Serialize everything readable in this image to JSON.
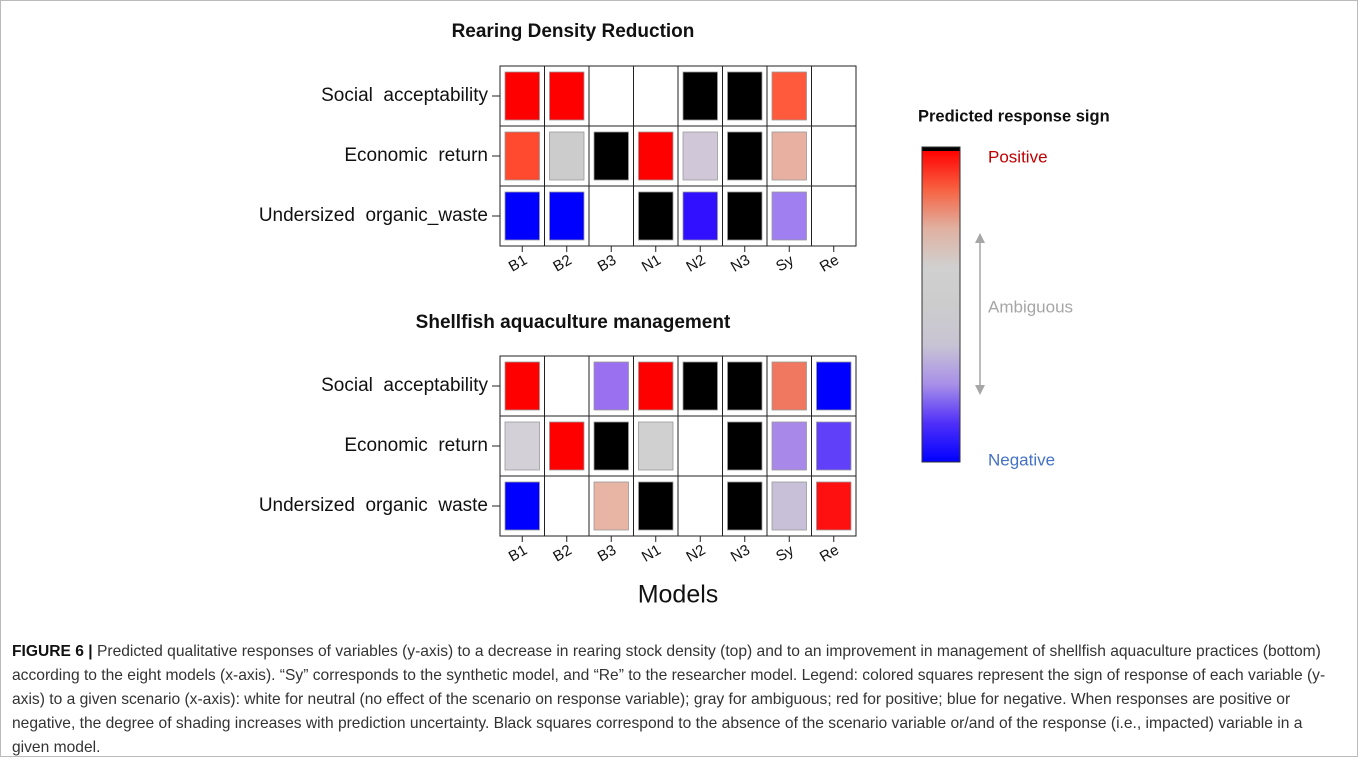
{
  "panels": [
    {
      "title": "Rearing Density Reduction",
      "rows": [
        "Social  acceptability",
        "Economic  return",
        "Undersized  organic_waste"
      ],
      "columns": [
        "B1",
        "B2",
        "B3",
        "N1",
        "N2",
        "N3",
        "Sy",
        "Re"
      ],
      "cells": [
        [
          "#ff0000",
          "#ff0000",
          "#ffffff",
          "#ffffff",
          "#000000",
          "#000000",
          "#ff5a3c",
          "#ffffff"
        ],
        [
          "#ff4a30",
          "#cccccc",
          "#000000",
          "#ff0000",
          "#d0c8d8",
          "#000000",
          "#e8b0a0",
          "#ffffff"
        ],
        [
          "#0000ff",
          "#0000ff",
          "#ffffff",
          "#000000",
          "#3010ff",
          "#000000",
          "#a080f0",
          "#ffffff"
        ]
      ]
    },
    {
      "title": "Shellfish aquaculture management",
      "rows": [
        "Social  acceptability",
        "Economic  return",
        "Undersized  organic  waste"
      ],
      "columns": [
        "B1",
        "B2",
        "B3",
        "N1",
        "N2",
        "N3",
        "Sy",
        "Re"
      ],
      "cells": [
        [
          "#ff0000",
          "#ffffff",
          "#9a70f0",
          "#ff0000",
          "#000000",
          "#000000",
          "#f07860",
          "#0000ff"
        ],
        [
          "#d4d0d8",
          "#ff0000",
          "#000000",
          "#d0d0d0",
          "#ffffff",
          "#000000",
          "#a888e8",
          "#6040f8"
        ],
        [
          "#0000ff",
          "#ffffff",
          "#e8b4a4",
          "#000000",
          "#ffffff",
          "#000000",
          "#c8c0d8",
          "#ff1010"
        ]
      ]
    }
  ],
  "x_axis_label": "Models",
  "legend": {
    "title": "Predicted response sign",
    "positive": "Positive",
    "ambiguous": "Ambiguous",
    "negative": "Negative",
    "top_color": "#000000",
    "colors": [
      "#ff0000",
      "#f86040",
      "#e0b0a0",
      "#d0d0d0",
      "#cccccc",
      "#c8c4d4",
      "#a890e8",
      "#5030f8",
      "#0000ff"
    ],
    "positive_color": "#c00000",
    "ambiguous_color": "#a6a6a6",
    "negative_color": "#4472c4"
  },
  "caption": {
    "label": "FIGURE 6 |",
    "text": "Predicted qualitative responses of variables (y-axis) to a decrease in rearing stock density (top) and to an improvement in management of shellfish aquaculture practices (bottom) according to the eight models (x-axis). “Sy” corresponds to the synthetic model, and “Re” to the researcher model. Legend: colored squares represent the sign of response of each variable (y-axis) to a given scenario (x-axis): white for neutral (no effect of the scenario on response variable); gray for ambiguous; red for positive; blue for negative. When responses are positive or negative, the degree of shading increases with prediction uncertainty. Black squares correspond to the absence of the scenario variable or/and of the response (i.e., impacted) variable in a given model."
  }
}
